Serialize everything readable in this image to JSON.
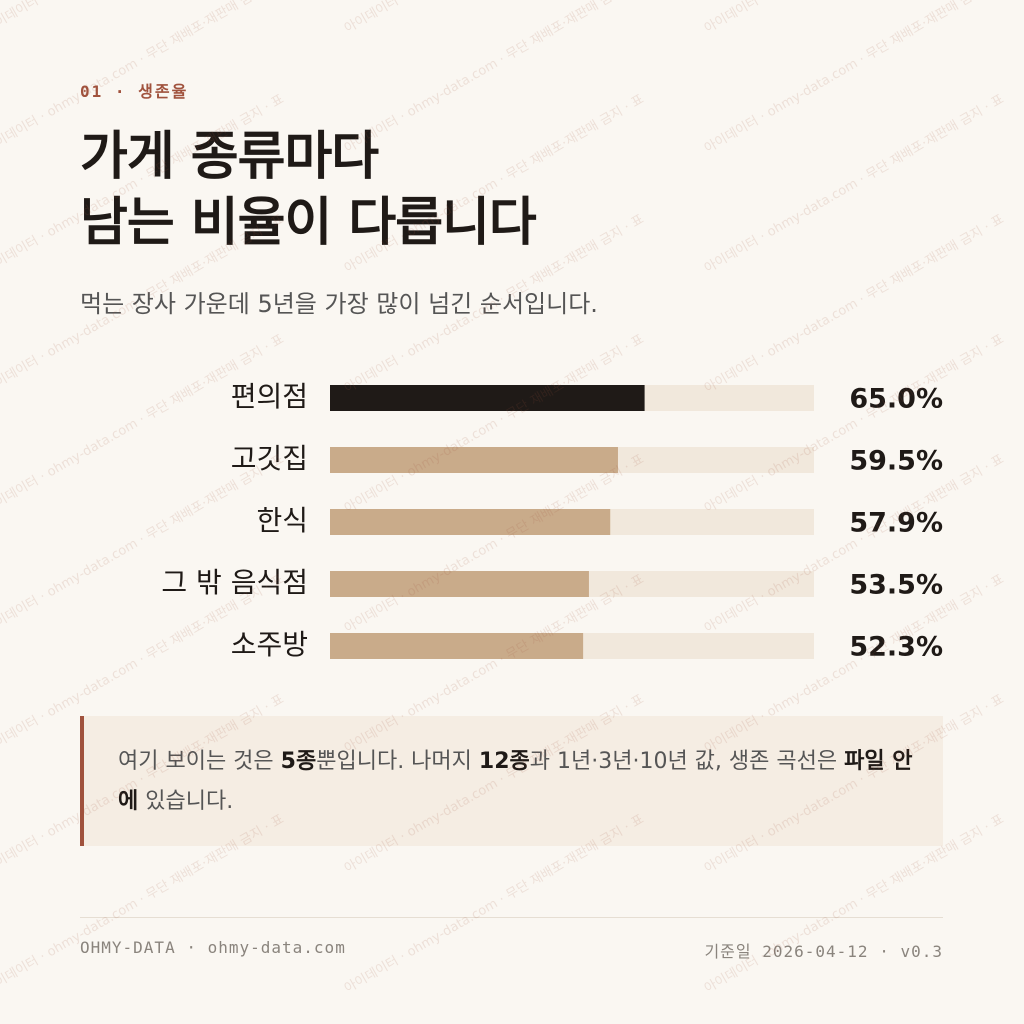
{
  "header": {
    "eyebrow": "01 · 생존율",
    "title_lines": [
      "가게 종류마다",
      "남는 비율이 다릅니다"
    ],
    "subtitle": "먹는 장사 가운데 5년을 가장 많이 넘긴 순서입니다."
  },
  "chart_data": {
    "type": "hbar",
    "categories": [
      "편의점",
      "고깃집",
      "한식",
      "그 밖 음식점",
      "소주방"
    ],
    "values": [
      65.0,
      59.5,
      57.9,
      53.5,
      52.3
    ],
    "value_labels": [
      "65.0%",
      "59.5%",
      "57.9%",
      "53.5%",
      "52.3%"
    ],
    "colors": [
      "#1f1a17",
      "#c9ab8a",
      "#c9ab8a",
      "#c9ab8a",
      "#c9ab8a"
    ],
    "track_color": "#f1e8dc",
    "xlim": [
      0,
      100
    ]
  },
  "note": {
    "segments": [
      {
        "text": "여기 보이는 것은 ",
        "bold": false
      },
      {
        "text": "5종",
        "bold": true
      },
      {
        "text": "뿐입니다. 나머지 ",
        "bold": false
      },
      {
        "text": "12종",
        "bold": true
      },
      {
        "text": "과 1년·3년·10년 값, 생존 곡선은 ",
        "bold": false
      },
      {
        "text": "파일 안에",
        "bold": true
      },
      {
        "text": " 있습니다.",
        "bold": false
      }
    ]
  },
  "footer": {
    "left": "OHMY-DATA · ohmy-data.com",
    "right": "기준일 2026-04-12 · v0.3"
  },
  "watermark": "아이데이터 · ohmy-data.com · 무단 재배포·재판매 금지 · 표"
}
